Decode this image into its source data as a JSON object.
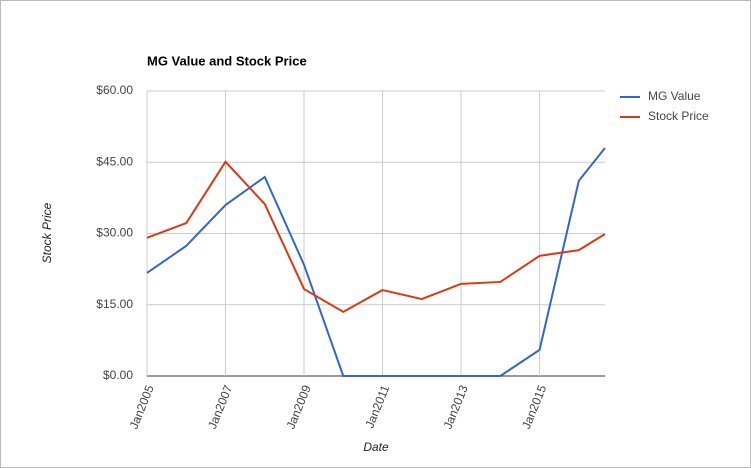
{
  "chart_data": {
    "type": "line",
    "title": "MG Value and Stock Price",
    "x_label": "Date",
    "y_label": "Stock Price",
    "x": [
      "2005-01",
      "2006-01",
      "2007-01",
      "2008-01",
      "2009-01",
      "2010-01",
      "2011-01",
      "2012-01",
      "2013-01",
      "2014-01",
      "2015-01",
      "2016-01",
      "2016-09"
    ],
    "series": [
      {
        "name": "MG Value",
        "color": "#3366cc",
        "values": [
          21.7,
          27.4,
          36.0,
          41.9,
          23.4,
          0,
          0,
          0,
          0,
          0,
          5.5,
          41.1,
          48.0
        ]
      },
      {
        "name": "Stock Price",
        "color": "#dc3912",
        "values": [
          29.1,
          32.2,
          45.1,
          36.2,
          18.3,
          13.5,
          18.1,
          16.2,
          19.4,
          19.8,
          25.3,
          26.5,
          29.9
        ]
      }
    ],
    "xlim": [
      "2005-01",
      "2016-09"
    ],
    "xticks": [
      {
        "value": "2005-01",
        "label": "Jan2005"
      },
      {
        "value": "2007-01",
        "label": "Jan2007"
      },
      {
        "value": "2009-01",
        "label": "Jan2009"
      },
      {
        "value": "2011-01",
        "label": "Jan2011"
      },
      {
        "value": "2013-01",
        "label": "Jan2013"
      },
      {
        "value": "2015-01",
        "label": "Jan2015"
      }
    ],
    "ylim": [
      0,
      60
    ],
    "yticks": [
      {
        "value": 0,
        "label": "$0.00"
      },
      {
        "value": 15,
        "label": "$15.00"
      },
      {
        "value": 30,
        "label": "$30.00"
      },
      {
        "value": 45,
        "label": "$45.00"
      },
      {
        "value": 60,
        "label": "$60.00"
      }
    ],
    "grid": true,
    "legend": "right"
  }
}
